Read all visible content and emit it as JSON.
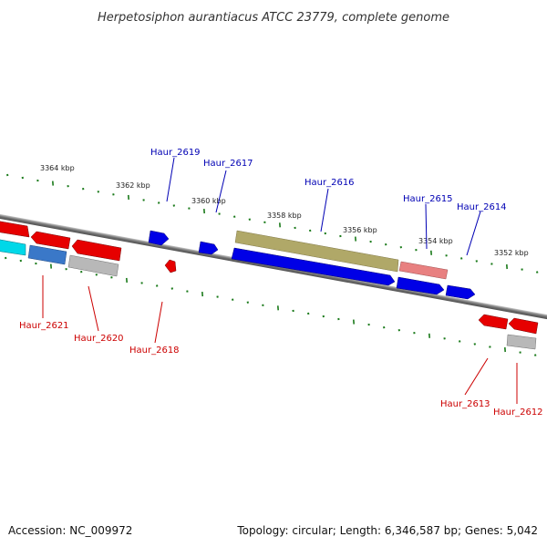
{
  "header": {
    "title": "Herpetosiphon aurantiacus ATCC 23779, complete genome"
  },
  "footer": {
    "accession": "Accession: NC_009972",
    "summary": "Topology: circular; Length: 6,346,587 bp; Genes: 5,042"
  },
  "ruler": {
    "upper_ticks": [
      "3364 kbp",
      "3362 kbp",
      "3360 kbp",
      "3358 kbp",
      "3356 kbp",
      "3354 kbp",
      "3352 kbp"
    ]
  },
  "colors": {
    "backbone": "#808080",
    "tick": "#1a7a1a",
    "blue_gene": "#0000e6",
    "red_gene": "#e60000",
    "cyan_gene": "#00d8e8",
    "steel_gene": "#3a78c8",
    "gray_gene": "#b8b8b8",
    "olive_gene": "#b0a868",
    "pink_gene": "#e88080",
    "label_blue": "#0000b4",
    "label_red": "#cc0000"
  },
  "genes": {
    "upper": [
      {
        "label": "Haur_2619"
      },
      {
        "label": "Haur_2617"
      },
      {
        "label": "Haur_2616"
      },
      {
        "label": "Haur_2615"
      },
      {
        "label": "Haur_2614"
      }
    ],
    "lower": [
      {
        "label": "Haur_2621"
      },
      {
        "label": "Haur_2620"
      },
      {
        "label": "Haur_2618"
      },
      {
        "label": "Haur_2613"
      },
      {
        "label": "Haur_2612"
      }
    ]
  }
}
